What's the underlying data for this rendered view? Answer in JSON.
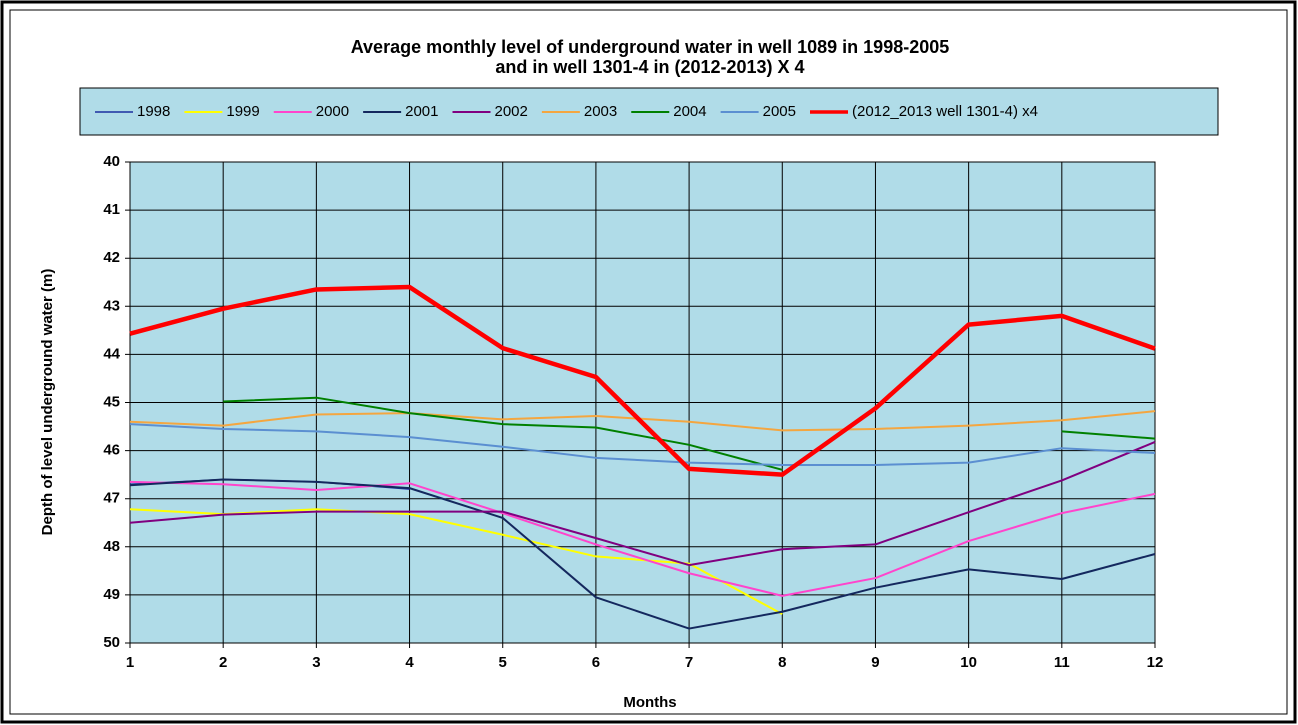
{
  "chart_data": {
    "type": "line",
    "title": [
      "Average monthly level of underground water in well 1089 in 1998-2005",
      "and in well 1301-4 in (2012-2013) X 4"
    ],
    "x_label": "Months",
    "y_label": "Depth of level  underground water  (m)",
    "x": [
      1,
      2,
      3,
      4,
      5,
      6,
      7,
      8,
      9,
      10,
      11,
      12
    ],
    "xlim": [
      1,
      12
    ],
    "xticks": [
      1,
      2,
      3,
      4,
      5,
      6,
      7,
      8,
      9,
      10,
      11,
      12
    ],
    "ylim": [
      40,
      50
    ],
    "yticks": [
      40,
      41,
      42,
      43,
      44,
      45,
      46,
      47,
      48,
      49,
      50
    ],
    "y_inverted": true,
    "grid": true,
    "plot_background": "#b0dce8",
    "legend": "top",
    "series": [
      {
        "name": "1998",
        "color": "#1a2fa0",
        "line_width": 1.5,
        "values": [
          46.7,
          46.6,
          46.65,
          46.8,
          null,
          null,
          null,
          null,
          null,
          null,
          null,
          null
        ]
      },
      {
        "name": "1999",
        "color": "#ffff00",
        "line_width": 2,
        "values": [
          47.22,
          47.32,
          47.22,
          47.32,
          47.75,
          48.2,
          48.35,
          49.4,
          null,
          null,
          null,
          null
        ]
      },
      {
        "name": "2000",
        "color": "#ff44cc",
        "line_width": 2,
        "values": [
          46.65,
          46.7,
          46.82,
          46.68,
          47.3,
          47.95,
          48.55,
          49.02,
          48.65,
          47.88,
          47.3,
          46.9
        ]
      },
      {
        "name": "2001",
        "color": "#14285e",
        "line_width": 2,
        "values": [
          46.72,
          46.6,
          46.65,
          46.78,
          47.4,
          49.05,
          49.7,
          49.35,
          48.85,
          48.47,
          48.67,
          48.15
        ]
      },
      {
        "name": "2002",
        "color": "#800080",
        "line_width": 2,
        "values": [
          47.5,
          47.33,
          47.27,
          47.27,
          47.27,
          47.82,
          48.38,
          48.05,
          47.95,
          47.28,
          46.62,
          45.82
        ]
      },
      {
        "name": "2003",
        "color": "#f4a640",
        "line_width": 2,
        "values": [
          45.4,
          45.48,
          45.25,
          45.22,
          45.35,
          45.28,
          45.4,
          45.58,
          45.55,
          45.48,
          45.37,
          45.18
        ]
      },
      {
        "name": "2004",
        "color": "#008000",
        "line_width": 2,
        "values": [
          null,
          44.98,
          44.9,
          45.22,
          45.45,
          45.52,
          45.88,
          46.4,
          null,
          null,
          45.6,
          45.75
        ]
      },
      {
        "name": "2005",
        "color": "#5b8fd1",
        "line_width": 2,
        "values": [
          45.45,
          45.55,
          45.6,
          45.72,
          45.92,
          46.15,
          46.25,
          46.3,
          46.3,
          46.25,
          45.95,
          46.05
        ]
      },
      {
        "name": "(2012_2013 well 1301-4) x4",
        "color": "#ff0000",
        "line_width": 4.5,
        "values": [
          43.57,
          43.05,
          42.65,
          42.6,
          43.87,
          44.47,
          46.38,
          46.5,
          45.12,
          43.38,
          43.2,
          43.88
        ]
      }
    ]
  }
}
